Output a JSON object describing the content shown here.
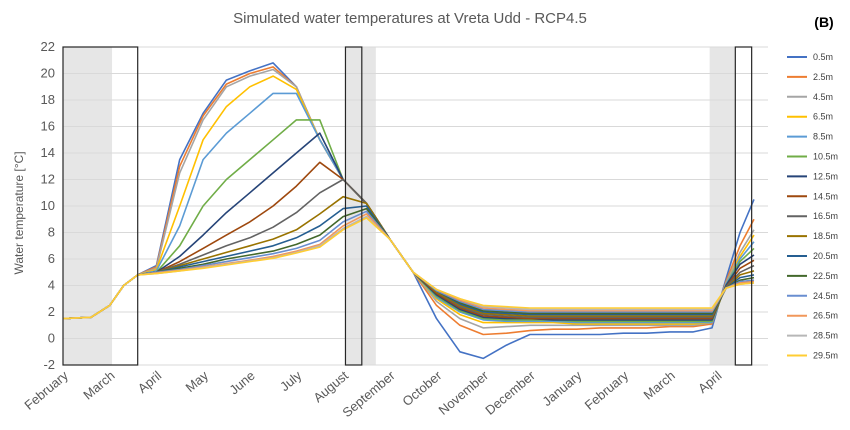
{
  "chart_data": {
    "type": "line",
    "title": "Simulated water temperatures at Vreta Udd - RCP4.5",
    "panel_label": "(B)",
    "ylabel": "Water temperature [°C]",
    "xlabel": "",
    "ylim": [
      -2,
      22
    ],
    "yticks": [
      "-2",
      "0",
      "2",
      "4",
      "6",
      "8",
      "10",
      "12",
      "14",
      "16",
      "18",
      "20",
      "22"
    ],
    "xlim": [
      0,
      15.1
    ],
    "month_labels": [
      "February",
      "March",
      "April",
      "May",
      "June",
      "July",
      "August",
      "September",
      "October",
      "November",
      "December",
      "January",
      "February",
      "March",
      "April"
    ],
    "month_positions": [
      0,
      1,
      2,
      3,
      4,
      5,
      6,
      7,
      8,
      9,
      10,
      11,
      12,
      13,
      14
    ],
    "grid": true,
    "legend_position": "right",
    "shaded_periods": [
      [
        0,
        1.05
      ],
      [
        6.05,
        6.7
      ],
      [
        13.85,
        14.4
      ]
    ],
    "boxed_periods": [
      [
        0,
        1.6
      ],
      [
        6.05,
        6.4
      ],
      [
        14.4,
        14.75
      ]
    ],
    "series": [
      {
        "name": "0.5m",
        "color": "#4472C4",
        "x": [
          0,
          0.6,
          1,
          1.3,
          1.6,
          2,
          2.5,
          3,
          3.5,
          4,
          4.5,
          5,
          5.5,
          6,
          6.5,
          7,
          7.5,
          8,
          8.5,
          9,
          9.5,
          10,
          10.5,
          11,
          11.5,
          12,
          12.5,
          13,
          13.5,
          13.9,
          14.2,
          14.5,
          14.8
        ],
        "y": [
          1.5,
          1.6,
          2.5,
          4,
          4.8,
          5.5,
          13.5,
          17,
          19.5,
          20.2,
          20.8,
          19,
          15,
          12,
          10.2,
          7.5,
          5,
          1.5,
          -1,
          -1.5,
          -0.5,
          0.3,
          0.3,
          0.3,
          0.3,
          0.4,
          0.4,
          0.5,
          0.5,
          0.8,
          4.5,
          8,
          10.5
        ]
      },
      {
        "name": "2.5m",
        "color": "#ED7D31",
        "x": [
          0,
          0.6,
          1,
          1.3,
          1.6,
          2,
          2.5,
          3,
          3.5,
          4,
          4.5,
          5,
          5.5,
          6,
          6.5,
          7,
          7.5,
          8,
          8.5,
          9,
          9.5,
          10,
          10.5,
          11,
          11.5,
          12,
          12.5,
          13,
          13.5,
          13.9,
          14.2,
          14.5,
          14.8
        ],
        "y": [
          1.5,
          1.6,
          2.5,
          4,
          4.8,
          5.4,
          13,
          16.8,
          19.2,
          20,
          20.5,
          19,
          15,
          12,
          10.2,
          7.5,
          5,
          2.5,
          1,
          0.3,
          0.4,
          0.6,
          0.7,
          0.7,
          0.8,
          0.8,
          0.8,
          0.9,
          0.9,
          1.1,
          4.3,
          7,
          9
        ]
      },
      {
        "name": "4.5m",
        "color": "#A5A5A5",
        "x": [
          0,
          0.6,
          1,
          1.3,
          1.6,
          2,
          2.5,
          3,
          3.5,
          4,
          4.5,
          5,
          5.5,
          6,
          6.5,
          7,
          7.5,
          8,
          8.5,
          9,
          9.5,
          10,
          10.5,
          11,
          11.5,
          12,
          12.5,
          13,
          13.5,
          13.9,
          14.2,
          14.5,
          14.8
        ],
        "y": [
          1.5,
          1.6,
          2.5,
          4,
          4.8,
          5.3,
          12.5,
          16.5,
          19,
          19.8,
          20.3,
          19,
          15,
          12,
          10.2,
          7.5,
          5,
          2.8,
          1.5,
          0.8,
          0.9,
          1,
          1,
          1,
          1,
          1,
          1,
          1,
          1,
          1.2,
          4.2,
          6.5,
          8.2
        ]
      },
      {
        "name": "6.5m",
        "color": "#FFC000",
        "x": [
          0,
          0.6,
          1,
          1.3,
          1.6,
          2,
          2.5,
          3,
          3.5,
          4,
          4.5,
          5,
          5.5,
          6,
          6.5,
          7,
          7.5,
          8,
          8.5,
          9,
          9.5,
          10,
          10.5,
          11,
          11.5,
          12,
          12.5,
          13,
          13.5,
          13.9,
          14.2,
          14.5,
          14.8
        ],
        "y": [
          1.5,
          1.6,
          2.5,
          4,
          4.8,
          5.2,
          10,
          15,
          17.5,
          19,
          19.8,
          18.8,
          15,
          12,
          10.2,
          7.5,
          5,
          3,
          1.8,
          1.2,
          1.2,
          1.2,
          1.2,
          1.1,
          1.1,
          1.1,
          1.1,
          1.1,
          1.1,
          1.2,
          4.1,
          6.2,
          7.8
        ]
      },
      {
        "name": "8.5m",
        "color": "#5B9BD5",
        "x": [
          0,
          0.6,
          1,
          1.3,
          1.6,
          2,
          2.5,
          3,
          3.5,
          4,
          4.5,
          5,
          5.5,
          6,
          6.5,
          7,
          7.5,
          8,
          8.5,
          9,
          9.5,
          10,
          10.5,
          11,
          11.5,
          12,
          12.5,
          13,
          13.5,
          13.9,
          14.2,
          14.5,
          14.8
        ],
        "y": [
          1.5,
          1.6,
          2.5,
          4,
          4.8,
          5.1,
          8.5,
          13.5,
          15.5,
          17,
          18.5,
          18.5,
          15,
          12,
          10.2,
          7.5,
          5,
          3.1,
          2,
          1.4,
          1.3,
          1.3,
          1.3,
          1.2,
          1.2,
          1.2,
          1.2,
          1.2,
          1.2,
          1.2,
          4.1,
          6,
          7.3
        ]
      },
      {
        "name": "10.5m",
        "color": "#70AD47",
        "x": [
          0,
          0.6,
          1,
          1.3,
          1.6,
          2,
          2.5,
          3,
          3.5,
          4,
          4.5,
          5,
          5.5,
          6,
          6.5,
          7,
          7.5,
          8,
          8.5,
          9,
          9.5,
          10,
          10.5,
          11,
          11.5,
          12,
          12.5,
          13,
          13.5,
          13.9,
          14.2,
          14.5,
          14.8
        ],
        "y": [
          1.5,
          1.6,
          2.5,
          4,
          4.8,
          5,
          7,
          10,
          12,
          13.5,
          15,
          16.5,
          16.5,
          12,
          10.2,
          7.5,
          5,
          3.2,
          2.1,
          1.5,
          1.4,
          1.4,
          1.4,
          1.3,
          1.3,
          1.3,
          1.3,
          1.3,
          1.3,
          1.3,
          4,
          5.8,
          6.8
        ]
      },
      {
        "name": "12.5m",
        "color": "#264478",
        "x": [
          0,
          0.6,
          1,
          1.3,
          1.6,
          2,
          2.5,
          3,
          3.5,
          4,
          4.5,
          5,
          5.5,
          6,
          6.5,
          7,
          7.5,
          8,
          8.5,
          9,
          9.5,
          10,
          10.5,
          11,
          11.5,
          12,
          12.5,
          13,
          13.5,
          13.9,
          14.2,
          14.5,
          14.8
        ],
        "y": [
          1.5,
          1.6,
          2.5,
          4,
          4.8,
          5,
          6.2,
          7.8,
          9.5,
          11,
          12.5,
          14,
          15.5,
          12,
          10.2,
          7.5,
          5,
          3.3,
          2.2,
          1.6,
          1.5,
          1.5,
          1.4,
          1.4,
          1.4,
          1.4,
          1.4,
          1.4,
          1.4,
          1.4,
          4,
          5.6,
          6.3
        ]
      },
      {
        "name": "14.5m",
        "color": "#9E480E",
        "x": [
          0,
          0.6,
          1,
          1.3,
          1.6,
          2,
          2.5,
          3,
          3.5,
          4,
          4.5,
          5,
          5.5,
          6,
          6.5,
          7,
          7.5,
          8,
          8.5,
          9,
          9.5,
          10,
          10.5,
          11,
          11.5,
          12,
          12.5,
          13,
          13.5,
          13.9,
          14.2,
          14.5,
          14.8
        ],
        "y": [
          1.5,
          1.6,
          2.5,
          4,
          4.8,
          5,
          5.8,
          6.8,
          7.8,
          8.8,
          10,
          11.5,
          13.3,
          12,
          10.2,
          7.5,
          5,
          3.4,
          2.3,
          1.7,
          1.6,
          1.5,
          1.5,
          1.5,
          1.5,
          1.5,
          1.5,
          1.5,
          1.5,
          1.5,
          3.9,
          5.3,
          5.9
        ]
      },
      {
        "name": "16.5m",
        "color": "#636363",
        "x": [
          0,
          0.6,
          1,
          1.3,
          1.6,
          2,
          2.5,
          3,
          3.5,
          4,
          4.5,
          5,
          5.5,
          6,
          6.5,
          7,
          7.5,
          8,
          8.5,
          9,
          9.5,
          10,
          10.5,
          11,
          11.5,
          12,
          12.5,
          13,
          13.5,
          13.9,
          14.2,
          14.5,
          14.8
        ],
        "y": [
          1.5,
          1.6,
          2.5,
          4,
          4.8,
          5,
          5.6,
          6.3,
          7,
          7.6,
          8.4,
          9.5,
          11,
          12,
          10.2,
          7.5,
          5,
          3.5,
          2.4,
          1.8,
          1.7,
          1.6,
          1.6,
          1.6,
          1.6,
          1.6,
          1.6,
          1.6,
          1.6,
          1.6,
          3.9,
          5,
          5.5
        ]
      },
      {
        "name": "18.5m",
        "color": "#997300",
        "x": [
          0,
          0.6,
          1,
          1.3,
          1.6,
          2,
          2.5,
          3,
          3.5,
          4,
          4.5,
          5,
          5.5,
          6,
          6.5,
          7,
          7.5,
          8,
          8.5,
          9,
          9.5,
          10,
          10.5,
          11,
          11.5,
          12,
          12.5,
          13,
          13.5,
          13.9,
          14.2,
          14.5,
          14.8
        ],
        "y": [
          1.5,
          1.6,
          2.5,
          4,
          4.8,
          5,
          5.5,
          6,
          6.5,
          7,
          7.5,
          8.2,
          9.4,
          10.7,
          10.2,
          7.5,
          5,
          3.5,
          2.5,
          1.9,
          1.8,
          1.7,
          1.7,
          1.7,
          1.7,
          1.7,
          1.7,
          1.7,
          1.7,
          1.7,
          3.8,
          4.8,
          5.1
        ]
      },
      {
        "name": "20.5m",
        "color": "#255E91",
        "x": [
          0,
          0.6,
          1,
          1.3,
          1.6,
          2,
          2.5,
          3,
          3.5,
          4,
          4.5,
          5,
          5.5,
          6,
          6.5,
          7,
          7.5,
          8,
          8.5,
          9,
          9.5,
          10,
          10.5,
          11,
          11.5,
          12,
          12.5,
          13,
          13.5,
          13.9,
          14.2,
          14.5,
          14.8
        ],
        "y": [
          1.5,
          1.6,
          2.5,
          4,
          4.8,
          5,
          5.4,
          5.8,
          6.2,
          6.6,
          7,
          7.6,
          8.5,
          9.8,
          10,
          7.5,
          5,
          3.6,
          2.6,
          2,
          1.9,
          1.8,
          1.8,
          1.8,
          1.8,
          1.8,
          1.8,
          1.8,
          1.8,
          1.8,
          3.8,
          4.6,
          4.8
        ]
      },
      {
        "name": "22.5m",
        "color": "#43682B",
        "x": [
          0,
          0.6,
          1,
          1.3,
          1.6,
          2,
          2.5,
          3,
          3.5,
          4,
          4.5,
          5,
          5.5,
          6,
          6.5,
          7,
          7.5,
          8,
          8.5,
          9,
          9.5,
          10,
          10.5,
          11,
          11.5,
          12,
          12.5,
          13,
          13.5,
          13.9,
          14.2,
          14.5,
          14.8
        ],
        "y": [
          1.5,
          1.6,
          2.5,
          4,
          4.8,
          5,
          5.3,
          5.6,
          6,
          6.3,
          6.6,
          7.1,
          7.8,
          9.2,
          9.8,
          7.5,
          5,
          3.6,
          2.7,
          2.1,
          2,
          1.9,
          1.9,
          1.9,
          1.9,
          1.9,
          1.9,
          1.9,
          1.9,
          1.9,
          3.8,
          4.4,
          4.6
        ]
      },
      {
        "name": "24.5m",
        "color": "#698ED0",
        "x": [
          0,
          0.6,
          1,
          1.3,
          1.6,
          2,
          2.5,
          3,
          3.5,
          4,
          4.5,
          5,
          5.5,
          6,
          6.5,
          7,
          7.5,
          8,
          8.5,
          9,
          9.5,
          10,
          10.5,
          11,
          11.5,
          12,
          12.5,
          13,
          13.5,
          13.9,
          14.2,
          14.5,
          14.8
        ],
        "y": [
          1.5,
          1.6,
          2.5,
          4,
          4.8,
          5,
          5.2,
          5.5,
          5.8,
          6.1,
          6.4,
          6.8,
          7.4,
          8.8,
          9.6,
          7.5,
          5,
          3.6,
          2.8,
          2.2,
          2.1,
          2,
          2,
          2,
          2,
          2,
          2,
          2,
          2,
          2,
          3.8,
          4.3,
          4.4
        ]
      },
      {
        "name": "26.5m",
        "color": "#F1975A",
        "x": [
          0,
          0.6,
          1,
          1.3,
          1.6,
          2,
          2.5,
          3,
          3.5,
          4,
          4.5,
          5,
          5.5,
          6,
          6.5,
          7,
          7.5,
          8,
          8.5,
          9,
          9.5,
          10,
          10.5,
          11,
          11.5,
          12,
          12.5,
          13,
          13.5,
          13.9,
          14.2,
          14.5,
          14.8
        ],
        "y": [
          1.5,
          1.6,
          2.5,
          4,
          4.8,
          4.95,
          5.15,
          5.4,
          5.65,
          5.9,
          6.2,
          6.6,
          7.1,
          8.5,
          9.4,
          7.5,
          5,
          3.7,
          2.9,
          2.3,
          2.2,
          2.1,
          2.1,
          2.1,
          2.1,
          2.1,
          2.1,
          2.1,
          2.1,
          2.1,
          3.8,
          4.2,
          4.3
        ]
      },
      {
        "name": "28.5m",
        "color": "#B7B7B7",
        "x": [
          0,
          0.6,
          1,
          1.3,
          1.6,
          2,
          2.5,
          3,
          3.5,
          4,
          4.5,
          5,
          5.5,
          6,
          6.5,
          7,
          7.5,
          8,
          8.5,
          9,
          9.5,
          10,
          10.5,
          11,
          11.5,
          12,
          12.5,
          13,
          13.5,
          13.9,
          14.2,
          14.5,
          14.8
        ],
        "y": [
          1.5,
          1.6,
          2.5,
          4,
          4.8,
          4.9,
          5.1,
          5.35,
          5.6,
          5.85,
          6.1,
          6.5,
          7,
          8.3,
          9.2,
          7.5,
          5,
          3.7,
          3,
          2.4,
          2.3,
          2.2,
          2.2,
          2.2,
          2.2,
          2.2,
          2.2,
          2.2,
          2.2,
          2.2,
          3.8,
          4.1,
          4.2
        ]
      },
      {
        "name": "29.5m",
        "color": "#FFCD33",
        "x": [
          0,
          0.6,
          1,
          1.3,
          1.6,
          2,
          2.5,
          3,
          3.5,
          4,
          4.5,
          5,
          5.5,
          6,
          6.5,
          7,
          7.5,
          8,
          8.5,
          9,
          9.5,
          10,
          10.5,
          11,
          11.5,
          12,
          12.5,
          13,
          13.5,
          13.9,
          14.2,
          14.5,
          14.8
        ],
        "y": [
          1.5,
          1.6,
          2.5,
          4,
          4.8,
          4.9,
          5.1,
          5.3,
          5.55,
          5.8,
          6.05,
          6.45,
          6.9,
          8.2,
          9.1,
          7.5,
          5,
          3.7,
          3,
          2.5,
          2.4,
          2.3,
          2.3,
          2.3,
          2.3,
          2.3,
          2.3,
          2.3,
          2.3,
          2.3,
          3.8,
          4.1,
          4.2
        ]
      }
    ]
  }
}
